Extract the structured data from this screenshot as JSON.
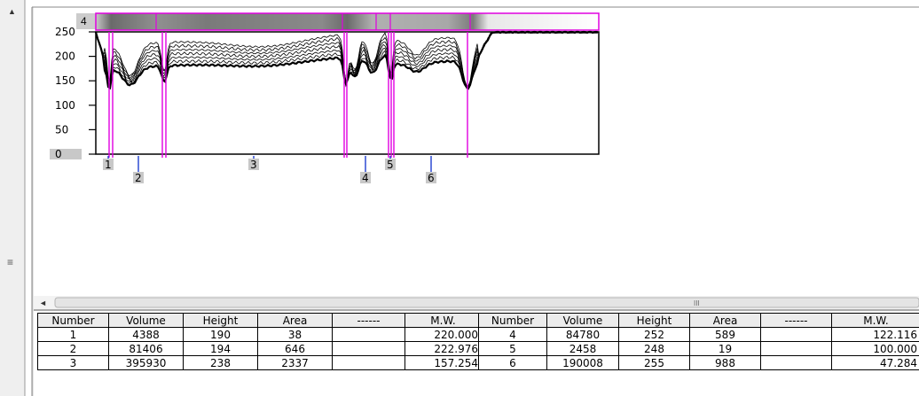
{
  "lane": {
    "number": "4",
    "y_ticks": [
      "250",
      "200",
      "150",
      "100",
      "50",
      "0"
    ],
    "band_markers": [
      "1",
      "2",
      "3",
      "4",
      "5",
      "6"
    ]
  },
  "hscroll": {
    "thumb_glyph": "III"
  },
  "vscroll": {
    "thumb_glyph": "≡",
    "up_arrow": "▲",
    "left_arrow": "◄"
  },
  "results": {
    "columns": [
      "Number",
      "Volume",
      "Height",
      "Area",
      "------",
      "M.W."
    ],
    "left_rows": [
      [
        "1",
        "4388",
        "190",
        "38",
        "",
        "220.000"
      ],
      [
        "2",
        "81406",
        "194",
        "646",
        "",
        "222.976"
      ],
      [
        "3",
        "395930",
        "238",
        "2337",
        "",
        "157.254"
      ]
    ],
    "right_rows": [
      [
        "4",
        "84780",
        "252",
        "589",
        "",
        "122.116"
      ],
      [
        "5",
        "2458",
        "248",
        "19",
        "",
        "100.000"
      ],
      [
        "6",
        "190008",
        "255",
        "988",
        "",
        "47.284"
      ]
    ]
  },
  "colors": {
    "accent": "#e000e0",
    "marker": "#1f3fd0",
    "trace": "#000000"
  }
}
